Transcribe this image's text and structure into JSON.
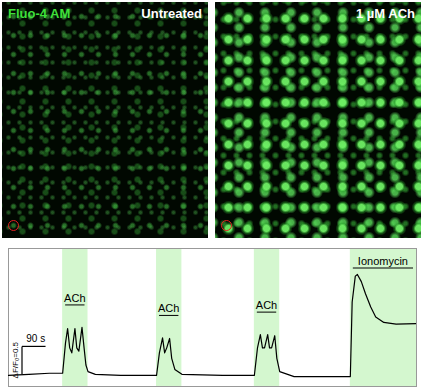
{
  "image_panels": [
    {
      "label": "Fluo-4 AM",
      "title": "Untreated"
    },
    {
      "title": "1 µM ACh"
    }
  ],
  "chart_data": {
    "type": "line",
    "x": [
      0,
      78,
      156,
      207,
      218,
      226,
      234,
      242,
      254,
      261,
      269,
      281,
      289,
      296,
      304,
      332,
      429,
      566,
      577,
      589,
      597,
      605,
      616,
      624,
      636,
      663,
      819,
      940,
      952,
      963,
      971,
      979,
      991,
      998,
      1006,
      1018,
      1026,
      1037,
      1092,
      1307,
      1314,
      1326,
      1334,
      1349,
      1365,
      1385,
      1404,
      1435,
      1482,
      1560
    ],
    "values": [
      0,
      0.02,
      0.04,
      0.04,
      0.59,
      0.85,
      0.5,
      0.41,
      0.85,
      0.5,
      0.44,
      0.87,
      0.5,
      0.19,
      0.07,
      0.02,
      0,
      0,
      0.41,
      0.68,
      0.41,
      0.5,
      0.67,
      0.31,
      0.11,
      0.02,
      0,
      0,
      0.5,
      0.74,
      0.5,
      0.5,
      0.74,
      0.5,
      0.5,
      0.72,
      0.31,
      0.07,
      -0.02,
      -0.02,
      1.33,
      1.8,
      1.83,
      1.7,
      1.48,
      1.24,
      1.06,
      0.96,
      0.93,
      0.94
    ],
    "color": "#000000",
    "xlim": [
      0,
      1560
    ],
    "ylim": [
      -0.2,
      2.3
    ],
    "tick_labels": false,
    "annotations": [
      {
        "label": "ACh",
        "x_start": 207,
        "x_end": 304,
        "color": "#d4f7cf"
      },
      {
        "label": "ACh",
        "x_start": 566,
        "x_end": 663,
        "color": "#d4f7cf"
      },
      {
        "label": "ACh",
        "x_start": 940,
        "x_end": 1037,
        "color": "#d4f7cf"
      },
      {
        "label": "Ionomycin",
        "x_start": 1307,
        "x_end": 1560,
        "color": "#d4f7cf"
      }
    ],
    "scale_bar": {
      "x": 90,
      "x_label": "90 s",
      "y": 0.5,
      "y_label": "ΔF/F₀=0.5"
    }
  }
}
